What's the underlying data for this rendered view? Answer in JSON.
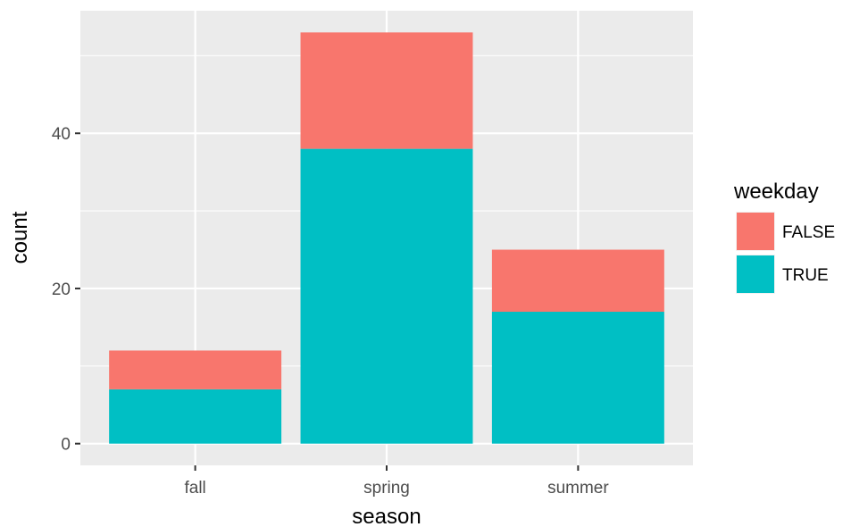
{
  "colors": {
    "panel_background": "#EBEBEB",
    "grid_major": "#FFFFFF",
    "tick_mark": "#333333",
    "tick_text": "#4D4D4D",
    "text": "#000000",
    "false_fill": "#F8766D",
    "true_fill": "#00BFC4"
  },
  "chart_data": {
    "type": "bar",
    "stacked": true,
    "categories": [
      "fall",
      "spring",
      "summer"
    ],
    "series": [
      {
        "name": "FALSE",
        "values": [
          5,
          15,
          8
        ]
      },
      {
        "name": "TRUE",
        "values": [
          7,
          38,
          17
        ]
      }
    ],
    "xlabel": "season",
    "ylabel": "count",
    "ylim": [
      -2.8,
      55.8
    ],
    "yticks": [
      0,
      20,
      40
    ],
    "grid": true,
    "legend": {
      "title": "weekday",
      "position": "right",
      "items": [
        "FALSE",
        "TRUE"
      ]
    }
  }
}
